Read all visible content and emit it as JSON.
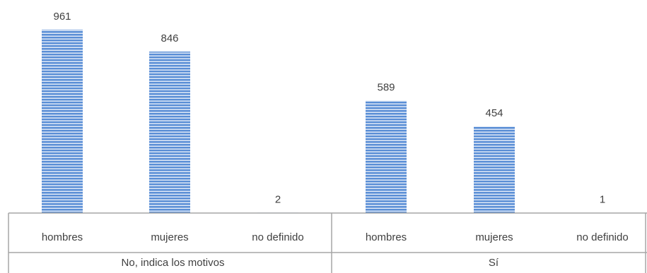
{
  "chart_data": {
    "type": "bar",
    "groups": [
      {
        "label": "No, indica los motivos",
        "categories": [
          "hombres",
          "mujeres",
          "no definido"
        ],
        "values": [
          961,
          846,
          2
        ]
      },
      {
        "label": "Sí",
        "categories": [
          "hombres",
          "mujeres",
          "no definido"
        ],
        "values": [
          589,
          454,
          1
        ]
      }
    ],
    "bar_color": "#5b8fd6",
    "stripe_color": "#ffffff",
    "axis_color": "#a6a6a6",
    "grid": false,
    "legend": "none"
  }
}
